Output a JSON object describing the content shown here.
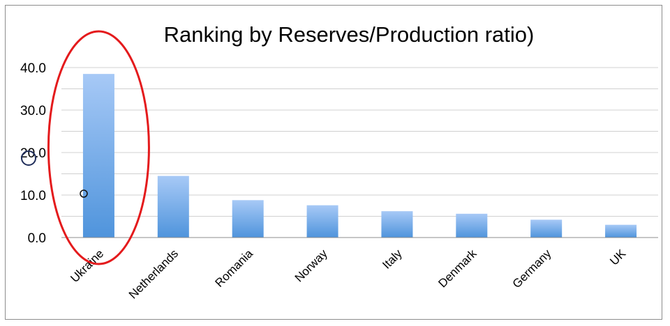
{
  "chart_data": {
    "type": "bar",
    "title": "Ranking by Reserves/Production ratio)",
    "xlabel": "",
    "ylabel": "",
    "categories": [
      "Ukraine",
      "Netherlands",
      "Romania",
      "Norway",
      "Italy",
      "Denmark",
      "Germany",
      "UK"
    ],
    "values": [
      38.5,
      14.5,
      8.8,
      7.6,
      6.2,
      5.6,
      4.2,
      3.0
    ],
    "ylim": [
      0,
      40
    ],
    "yticks": [
      "0.0",
      "10.0",
      "20.0",
      "30.0",
      "40.0"
    ],
    "grid": true,
    "bar_gradient": [
      "#a7c9f6",
      "#4f94dc"
    ],
    "annotation": {
      "type": "ellipse",
      "color": "#e41a1c",
      "target": "Ukraine"
    }
  }
}
